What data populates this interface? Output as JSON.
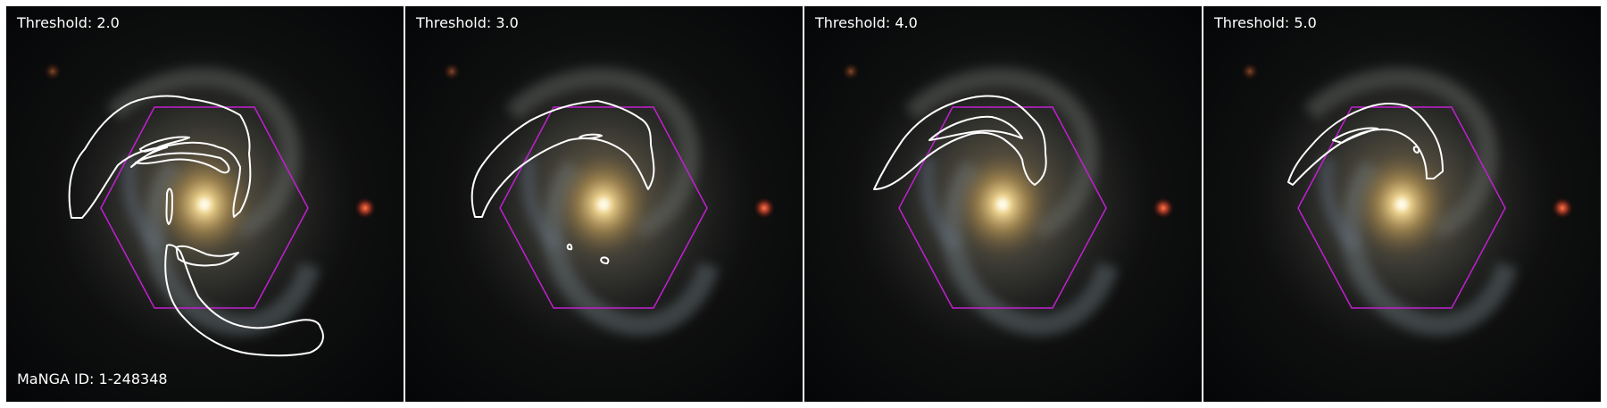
{
  "panels": [
    {
      "threshold_label": "Threshold: 2.0"
    },
    {
      "threshold_label": "Threshold: 3.0"
    },
    {
      "threshold_label": "Threshold: 4.0"
    },
    {
      "threshold_label": "Threshold: 5.0"
    }
  ],
  "manga_label": "MaNGA ID: 1-248348",
  "colors": {
    "background": "#07080a",
    "hexagon": "#c21fd1",
    "contour": "#ffffff",
    "bulge": "#f4e7b8",
    "star": "#d4462a"
  }
}
